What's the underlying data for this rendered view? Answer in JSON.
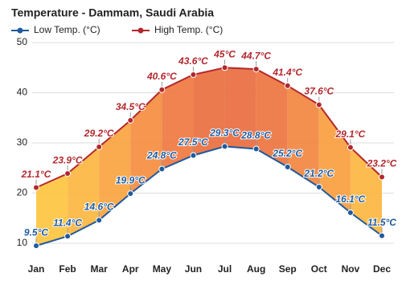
{
  "chart_data": {
    "type": "line",
    "title": "Temperature - Dammam, Saudi Arabia",
    "categories": [
      "Jan",
      "Feb",
      "Mar",
      "Apr",
      "May",
      "Jun",
      "Jul",
      "Aug",
      "Sep",
      "Oct",
      "Nov",
      "Dec"
    ],
    "series": [
      {
        "name": "Low Temp. (°C)",
        "color": "#1f5a9e",
        "values": [
          9.5,
          11.4,
          14.6,
          19.9,
          24.8,
          27.5,
          29.3,
          28.8,
          25.2,
          21.2,
          16.1,
          11.5
        ],
        "value_labels": [
          "9.5°C",
          "11.4°C",
          "14.6°C",
          "19.9°C",
          "24.8°C",
          "27.5°C",
          "29.3°C",
          "28.8°C",
          "25.2°C",
          "21.2°C",
          "16.1°C",
          "11.5°C"
        ]
      },
      {
        "name": "High Temp. (°C)",
        "color": "#b3282d",
        "values": [
          21.1,
          23.9,
          29.2,
          34.5,
          40.6,
          43.6,
          45,
          44.7,
          41.4,
          37.6,
          29.1,
          23.2
        ],
        "value_labels": [
          "21.1°C",
          "23.9°C",
          "29.2°C",
          "34.5°C",
          "40.6°C",
          "43.6°C",
          "45°C",
          "44.7°C",
          "41.4°C",
          "37.6°C",
          "29.1°C",
          "23.2°C"
        ]
      }
    ],
    "ylim": [
      7.2,
      50
    ],
    "yticks": [
      10,
      20,
      30,
      40,
      50
    ],
    "grid": true
  }
}
